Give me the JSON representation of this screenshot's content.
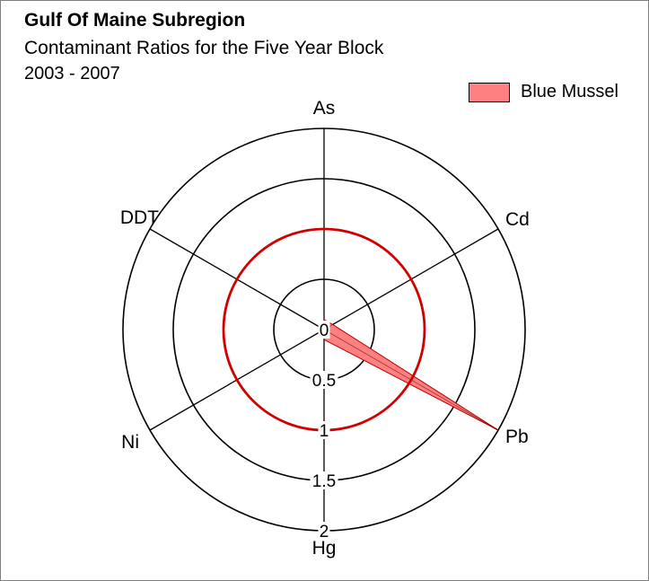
{
  "title": "Gulf Of Maine Subregion",
  "subtitle": "Contaminant Ratios for the Five Year Block",
  "period": "2003 - 2007",
  "colors": {
    "series_fill": "#ff8080",
    "series_stroke": "#c00000",
    "reference_ring": "#d00000",
    "grid": "#000000"
  },
  "chart_data": {
    "type": "radar",
    "axes": [
      "As",
      "Cd",
      "Pb",
      "Hg",
      "Ni",
      "DDT"
    ],
    "radial_range": [
      0,
      2
    ],
    "radial_ticks": [
      0,
      0.5,
      1,
      1.5,
      2
    ],
    "radial_tick_labels": [
      "0",
      "0.5",
      "1",
      "1.5",
      "2"
    ],
    "reference_ring_value": 1,
    "legend_position": "top-right",
    "series": [
      {
        "name": "Blue Mussel",
        "values": [
          0.1,
          0.1,
          2.0,
          0.1,
          0.0,
          0.0
        ]
      }
    ]
  }
}
